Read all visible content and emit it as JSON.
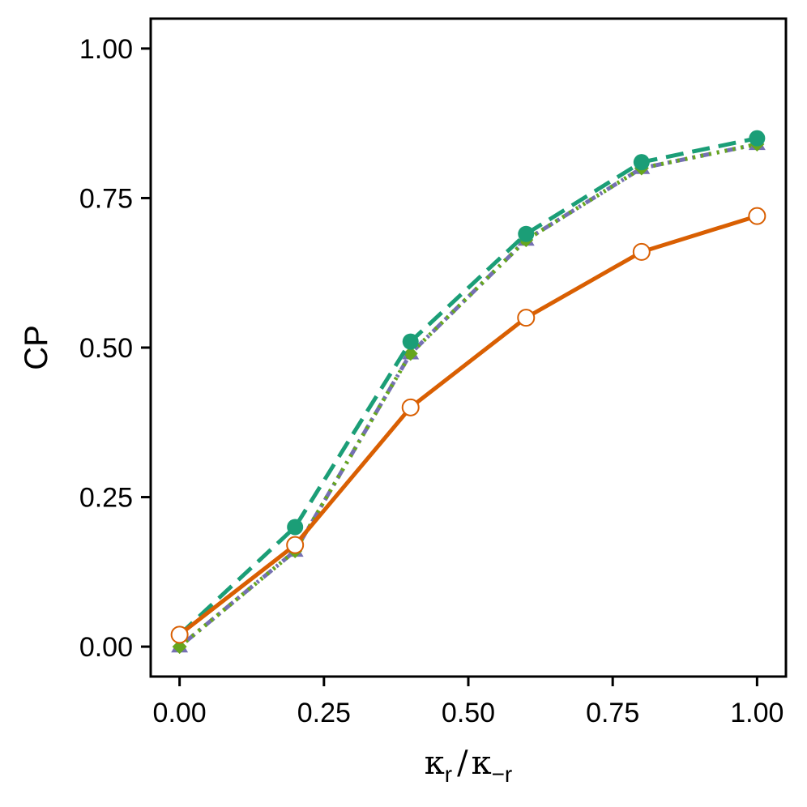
{
  "chart_data": {
    "type": "line",
    "title": "",
    "ylabel": "CP",
    "xlabel": {
      "kappa1": "κ",
      "sub1": "r",
      "slash": "/",
      "kappa2": "κ",
      "sub2": "−r"
    },
    "xlim": [
      -0.05,
      1.05
    ],
    "ylim": [
      -0.05,
      1.05
    ],
    "x_ticks": [
      0,
      0.25,
      0.5,
      0.75,
      1
    ],
    "x_tick_labels": [
      "0.00",
      "0.25",
      "0.50",
      "0.75",
      "1.00"
    ],
    "y_ticks": [
      0,
      0.25,
      0.5,
      0.75,
      1
    ],
    "y_tick_labels": [
      "0.00",
      "0.25",
      "0.50",
      "0.75",
      "1.00"
    ],
    "x": [
      0,
      0.2,
      0.4,
      0.6,
      0.8,
      1.0
    ],
    "legend": "none",
    "grid": false,
    "series": [
      {
        "name": "series-purple-dotdash",
        "values": [
          0.0,
          0.16,
          0.49,
          0.68,
          0.8,
          0.84
        ],
        "color": "#7570b3",
        "dash": "dotdash",
        "marker": "triangle"
      },
      {
        "name": "series-green-dotted",
        "values": [
          0.0,
          0.16,
          0.49,
          0.68,
          0.8,
          0.84
        ],
        "color": "#66a61e",
        "dash": "dotted",
        "marker": "diamond"
      },
      {
        "name": "series-teal-dashed",
        "values": [
          0.02,
          0.2,
          0.51,
          0.69,
          0.81,
          0.85
        ],
        "color": "#1b9e77",
        "dash": "dashed",
        "marker": "circle-filled"
      },
      {
        "name": "series-orange-solid",
        "values": [
          0.02,
          0.17,
          0.4,
          0.55,
          0.66,
          0.72
        ],
        "color": "#d95f02",
        "dash": "solid",
        "marker": "circle-open"
      }
    ]
  }
}
